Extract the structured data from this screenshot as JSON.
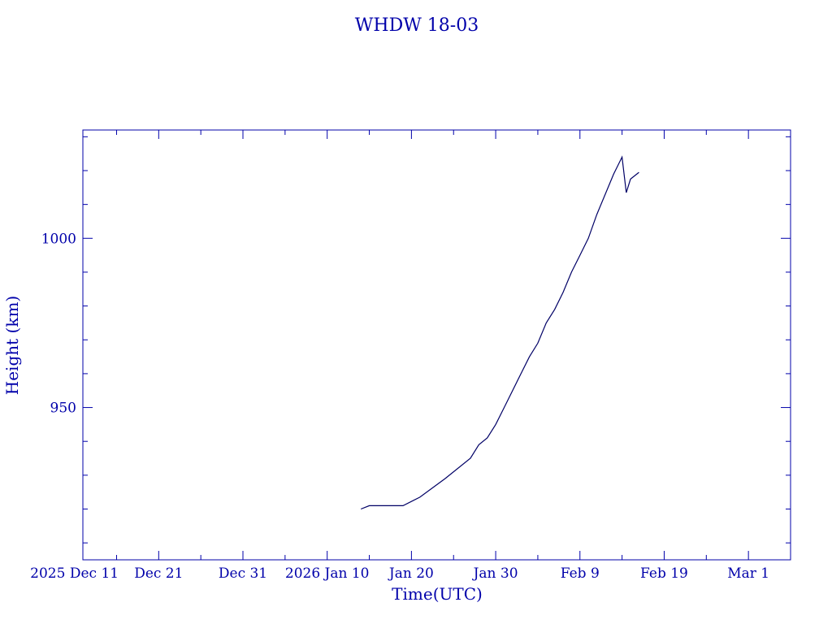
{
  "chart_data": {
    "type": "line",
    "title": "WHDW 18-03",
    "xlabel": "Time(UTC)",
    "ylabel": "Height (km)",
    "ylim": [
      905,
      1032
    ],
    "xlim": [
      "2025-12-12",
      "2026-03-06"
    ],
    "grid": false,
    "colors": {
      "axis": "#0000aa",
      "line": "#000066"
    },
    "x_ticks": [
      {
        "date": "2025-12-11",
        "label": "2025 Dec 11"
      },
      {
        "date": "2025-12-21",
        "label": "Dec 21"
      },
      {
        "date": "2025-12-31",
        "label": "Dec 31"
      },
      {
        "date": "2026-01-10",
        "label": "2026 Jan 10"
      },
      {
        "date": "2026-01-20",
        "label": "Jan 20"
      },
      {
        "date": "2026-01-30",
        "label": "Jan 30"
      },
      {
        "date": "2026-02-09",
        "label": "Feb  9"
      },
      {
        "date": "2026-02-19",
        "label": "Feb 19"
      },
      {
        "date": "2026-03-01",
        "label": "Mar  1"
      }
    ],
    "y_ticks": [
      {
        "value": 950,
        "label": "950"
      },
      {
        "value": 1000,
        "label": "1000"
      }
    ],
    "series": [
      {
        "points": [
          [
            "2026-01-14",
            920.0
          ],
          [
            "2026-01-15",
            921.0
          ],
          [
            "2026-01-19",
            921.0
          ],
          [
            "2026-01-21",
            923.5
          ],
          [
            "2026-01-24",
            929.0
          ],
          [
            "2026-01-27",
            935.0
          ],
          [
            "2026-01-28",
            939.0
          ],
          [
            "2026-01-29",
            941.0
          ],
          [
            "2026-01-30",
            945.0
          ],
          [
            "2026-01-31",
            950.0
          ],
          [
            "2026-02-02",
            960.0
          ],
          [
            "2026-02-03",
            965.0
          ],
          [
            "2026-02-04",
            969.0
          ],
          [
            "2026-02-05",
            975.0
          ],
          [
            "2026-02-06",
            979.0
          ],
          [
            "2026-02-07",
            984.0
          ],
          [
            "2026-02-08",
            990.0
          ],
          [
            "2026-02-09",
            995.0
          ],
          [
            "2026-02-10",
            1000.0
          ],
          [
            "2026-02-11",
            1007.0
          ],
          [
            "2026-02-12",
            1013.0
          ],
          [
            "2026-02-13",
            1019.0
          ],
          [
            "2026-02-14",
            1024.0
          ],
          [
            "2026-02-14.5",
            1013.5
          ],
          [
            "2026-02-15",
            1017.5
          ],
          [
            "2026-02-16",
            1019.5
          ]
        ]
      }
    ]
  }
}
